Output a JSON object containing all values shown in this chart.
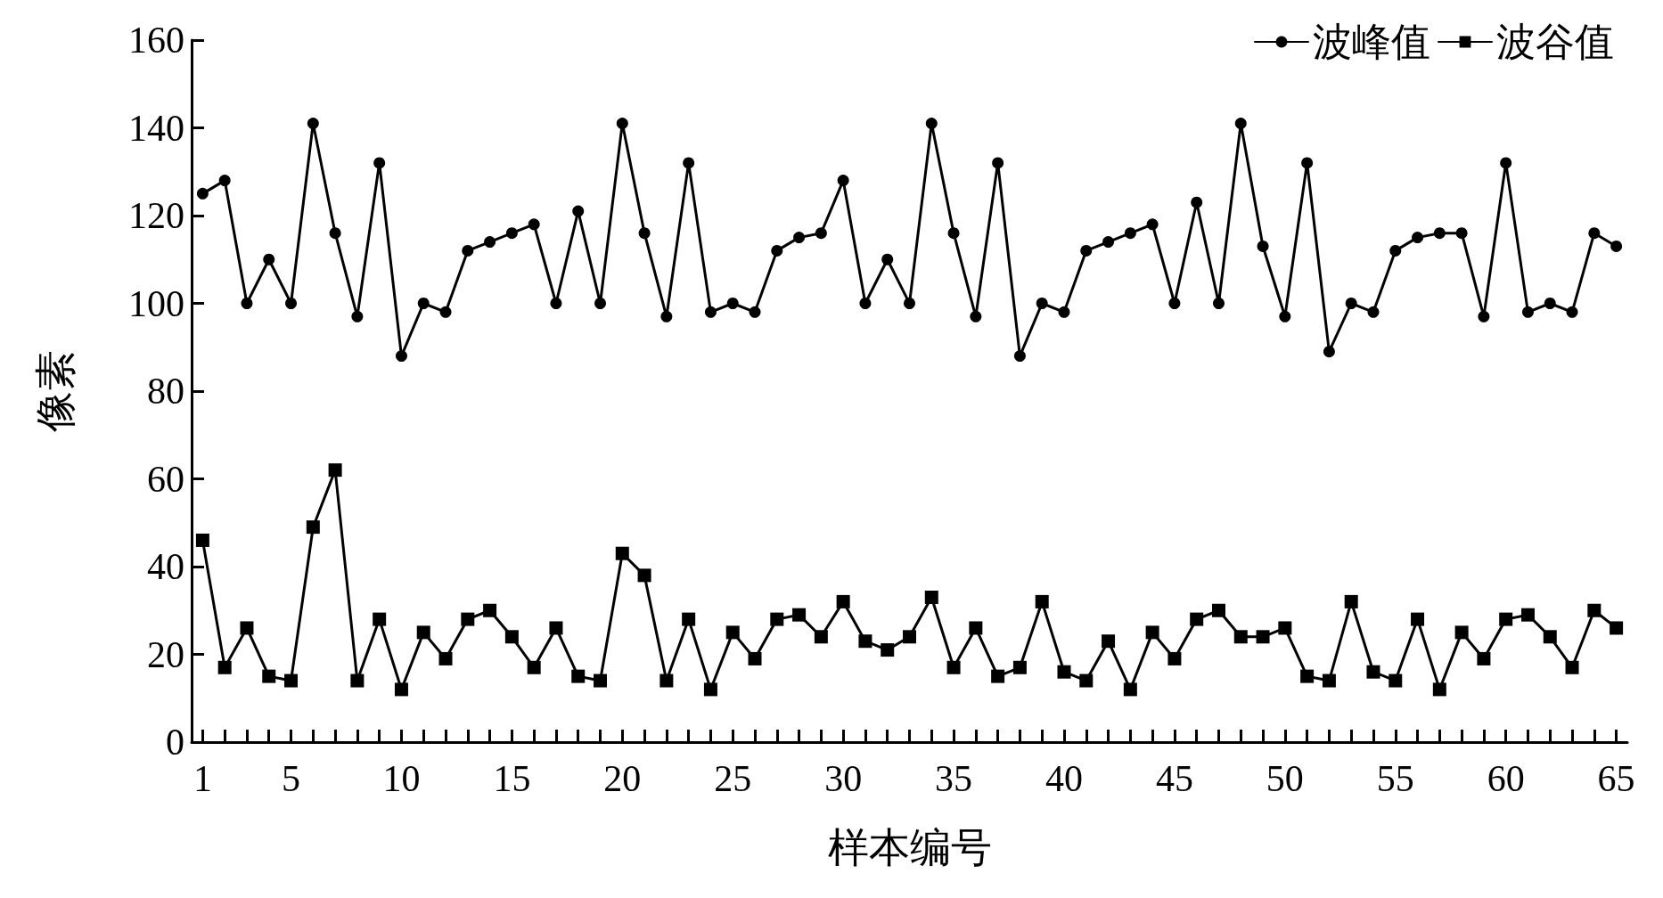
{
  "chart_data": {
    "type": "line",
    "xlabel": "样本编号",
    "ylabel": "像素",
    "x": [
      1,
      2,
      3,
      4,
      5,
      6,
      7,
      8,
      9,
      10,
      11,
      12,
      13,
      14,
      15,
      16,
      17,
      18,
      19,
      20,
      21,
      22,
      23,
      24,
      25,
      26,
      27,
      28,
      29,
      30,
      31,
      32,
      33,
      34,
      35,
      36,
      37,
      38,
      39,
      40,
      41,
      42,
      43,
      44,
      45,
      46,
      47,
      48,
      49,
      50,
      51,
      52,
      53,
      54,
      55,
      56,
      57,
      58,
      59,
      60,
      61,
      62,
      63,
      64,
      65
    ],
    "series": [
      {
        "name": "波峰值",
        "color": "#000000",
        "marker": "circle",
        "values": [
          125,
          128,
          100,
          110,
          100,
          141,
          116,
          97,
          132,
          88,
          100,
          98,
          112,
          114,
          116,
          118,
          100,
          121,
          100,
          141,
          116,
          97,
          132,
          98,
          100,
          98,
          112,
          115,
          116,
          128,
          100,
          110,
          100,
          141,
          116,
          97,
          132,
          88,
          100,
          98,
          112,
          114,
          116,
          118,
          100,
          123,
          100,
          141,
          113,
          97,
          132,
          89,
          100,
          98,
          112,
          115,
          116,
          116,
          97,
          132,
          98,
          100,
          98,
          116,
          113
        ]
      },
      {
        "name": "波谷值",
        "color": "#000000",
        "marker": "square",
        "values": [
          46,
          17,
          26,
          15,
          14,
          49,
          62,
          14,
          28,
          12,
          25,
          19,
          28,
          30,
          24,
          17,
          26,
          15,
          14,
          43,
          38,
          14,
          28,
          12,
          25,
          19,
          28,
          29,
          24,
          32,
          23,
          21,
          24,
          33,
          17,
          26,
          15,
          17,
          32,
          16,
          14,
          23,
          12,
          25,
          19,
          28,
          30,
          24,
          24,
          26,
          15,
          14,
          32,
          16,
          14,
          28,
          12,
          25,
          19,
          28,
          29,
          24,
          17,
          30,
          26
        ]
      }
    ],
    "xlim": [
      0.5,
      65.5
    ],
    "xticks": [
      1,
      {
        "value": 2,
        "label": null
      },
      {
        "value": 3,
        "label": null
      },
      {
        "value": 4,
        "label": null
      },
      5,
      {
        "value": 6,
        "label": null
      },
      {
        "value": 7,
        "label": null
      },
      {
        "value": 8,
        "label": null
      },
      {
        "value": 9,
        "label": null
      },
      10,
      {
        "value": 11,
        "label": null
      },
      {
        "value": 12,
        "label": null
      },
      {
        "value": 13,
        "label": null
      },
      {
        "value": 14,
        "label": null
      },
      15,
      {
        "value": 16,
        "label": null
      },
      {
        "value": 17,
        "label": null
      },
      {
        "value": 18,
        "label": null
      },
      {
        "value": 19,
        "label": null
      },
      20,
      {
        "value": 21,
        "label": null
      },
      {
        "value": 22,
        "label": null
      },
      {
        "value": 23,
        "label": null
      },
      {
        "value": 24,
        "label": null
      },
      25,
      {
        "value": 26,
        "label": null
      },
      {
        "value": 27,
        "label": null
      },
      {
        "value": 28,
        "label": null
      },
      {
        "value": 29,
        "label": null
      },
      30,
      {
        "value": 31,
        "label": null
      },
      {
        "value": 32,
        "label": null
      },
      {
        "value": 33,
        "label": null
      },
      {
        "value": 34,
        "label": null
      },
      35,
      {
        "value": 36,
        "label": null
      },
      {
        "value": 37,
        "label": null
      },
      {
        "value": 38,
        "label": null
      },
      {
        "value": 39,
        "label": null
      },
      40,
      {
        "value": 41,
        "label": null
      },
      {
        "value": 42,
        "label": null
      },
      {
        "value": 43,
        "label": null
      },
      {
        "value": 44,
        "label": null
      },
      45,
      {
        "value": 46,
        "label": null
      },
      {
        "value": 47,
        "label": null
      },
      {
        "value": 48,
        "label": null
      },
      {
        "value": 49,
        "label": null
      },
      50,
      {
        "value": 51,
        "label": null
      },
      {
        "value": 52,
        "label": null
      },
      {
        "value": 53,
        "label": null
      },
      {
        "value": 54,
        "label": null
      },
      55,
      {
        "value": 56,
        "label": null
      },
      {
        "value": 57,
        "label": null
      },
      {
        "value": 58,
        "label": null
      },
      {
        "value": 59,
        "label": null
      },
      60,
      {
        "value": 61,
        "label": null
      },
      {
        "value": 62,
        "label": null
      },
      {
        "value": 63,
        "label": null
      },
      {
        "value": 64,
        "label": null
      },
      65
    ],
    "ylim": [
      0,
      160
    ],
    "yticks": [
      0,
      20,
      40,
      60,
      80,
      100,
      120,
      140,
      160
    ],
    "grid": false,
    "legend": "top right",
    "line_style": "solid"
  }
}
